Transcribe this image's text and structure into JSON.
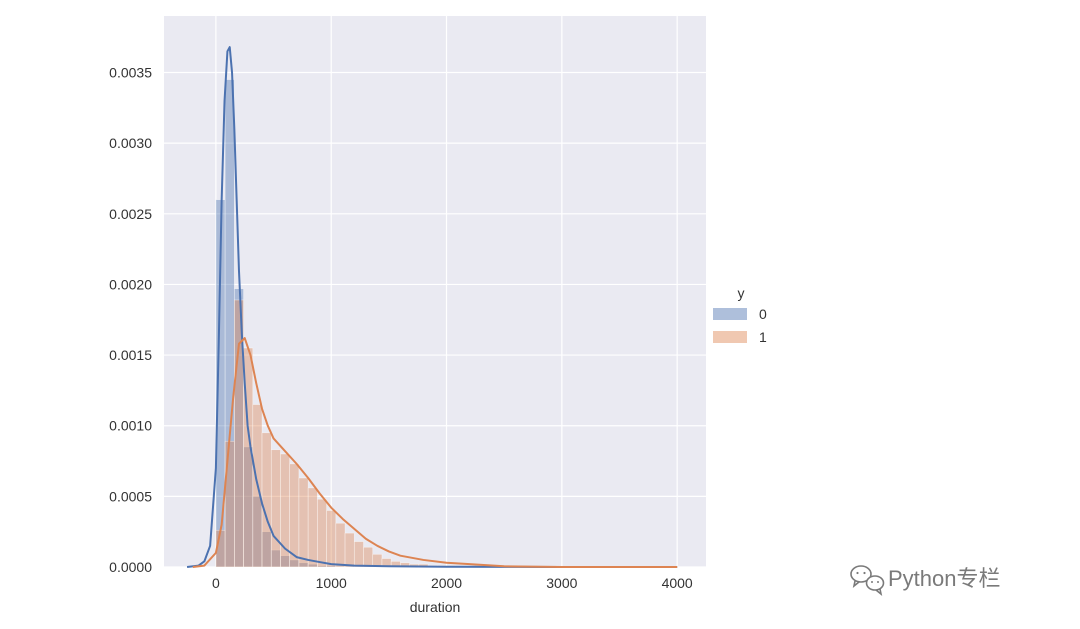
{
  "chart_data": {
    "type": "histogram",
    "xlabel": "duration",
    "ylabel": "",
    "xlim": [
      -450,
      4250
    ],
    "ylim": [
      0,
      0.0039
    ],
    "grid": true,
    "x_ticks": [
      0,
      1000,
      2000,
      3000,
      4000
    ],
    "y_ticks": [
      0.0,
      0.0005,
      0.001,
      0.0015,
      0.002,
      0.0025,
      0.003,
      0.0035
    ],
    "y_tick_labels": [
      "0.0000",
      "0.0005",
      "0.0010",
      "0.0015",
      "0.0020",
      "0.0025",
      "0.0030",
      "0.0035"
    ],
    "x_tick_labels": [
      "0",
      "1000",
      "2000",
      "3000",
      "4000"
    ],
    "legend": {
      "title": "y",
      "position": "right",
      "entries": [
        "0",
        "1"
      ]
    },
    "series": [
      {
        "name": "0",
        "color": "#4c72b0",
        "bins": {
          "start": 0,
          "width": 80,
          "values": [
            0.0026,
            0.00345,
            0.00197,
            0.00085,
            0.0005,
            0.00025,
            0.00012,
            8e-05,
            5e-05,
            3e-05,
            2e-05,
            1e-05,
            1e-05,
            5e-06,
            5e-06
          ]
        },
        "kde": {
          "x": [
            -250,
            -150,
            -100,
            -50,
            0,
            25,
            50,
            75,
            100,
            120,
            140,
            160,
            180,
            200,
            225,
            250,
            275,
            300,
            350,
            400,
            450,
            500,
            600,
            700,
            800,
            900,
            1000,
            1200,
            1500,
            2000,
            3000,
            4000
          ],
          "y": [
            0,
            1e-05,
            4e-05,
            0.00015,
            0.0007,
            0.0016,
            0.0026,
            0.0033,
            0.00365,
            0.00368,
            0.0035,
            0.0031,
            0.0026,
            0.0021,
            0.00165,
            0.0013,
            0.001,
            0.00085,
            0.00062,
            0.00045,
            0.00032,
            0.00022,
            0.00013,
            7e-05,
            5e-05,
            3.5e-05,
            2e-05,
            1e-05,
            5e-06,
            2e-06,
            0,
            0
          ]
        }
      },
      {
        "name": "1",
        "color": "#dd8452",
        "bins": {
          "start": 0,
          "width": 80,
          "values": [
            0.00026,
            0.00089,
            0.00189,
            0.00155,
            0.00115,
            0.00095,
            0.00083,
            0.0008,
            0.00073,
            0.00063,
            0.00056,
            0.00048,
            0.0004,
            0.00031,
            0.00024,
            0.00018,
            0.00014,
            9e-05,
            6e-05,
            4e-05,
            3e-05,
            2e-05,
            2e-05,
            1e-05,
            1e-05,
            1e-05
          ]
        },
        "kde": {
          "x": [
            -200,
            -100,
            0,
            50,
            100,
            150,
            200,
            250,
            300,
            350,
            400,
            450,
            500,
            600,
            700,
            800,
            900,
            1000,
            1100,
            1200,
            1300,
            1400,
            1500,
            1600,
            1800,
            2000,
            2200,
            2500,
            3000,
            3500,
            4000
          ],
          "y": [
            0,
            1e-05,
            0.0001,
            0.0003,
            0.00075,
            0.0012,
            0.00158,
            0.00162,
            0.0015,
            0.0013,
            0.00112,
            0.001,
            0.00091,
            0.00082,
            0.00073,
            0.00063,
            0.00052,
            0.00042,
            0.00034,
            0.00027,
            0.0002,
            0.00015,
            0.00011,
            8e-05,
            5e-05,
            3e-05,
            2e-05,
            5e-06,
            0,
            0,
            0
          ]
        }
      }
    ]
  },
  "watermark": {
    "text": "Python专栏",
    "icon": "wechat-icon"
  }
}
